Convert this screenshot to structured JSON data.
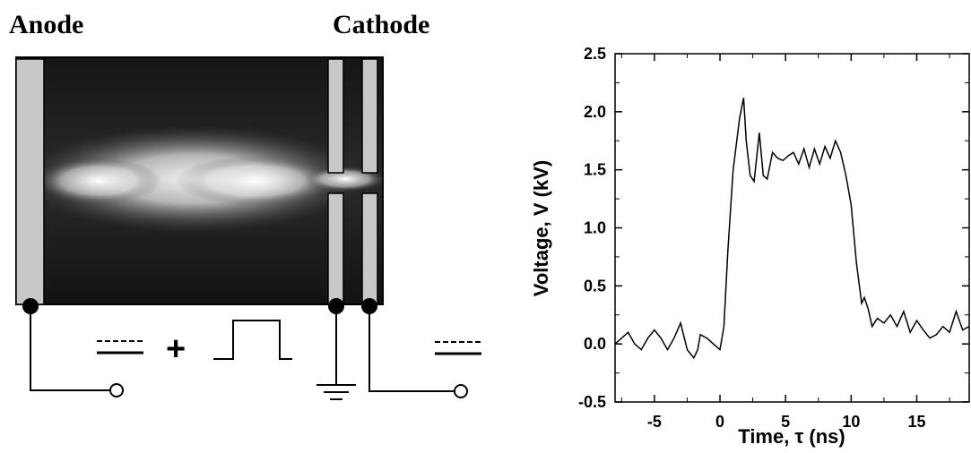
{
  "diagram": {
    "anode_label": "Anode",
    "cathode_label": "Cathode",
    "plus_sign": "+"
  },
  "chart_data": {
    "type": "line",
    "xlabel": "Time, τ (ns)",
    "ylabel": "Voltage, V (kV)",
    "xlim": [
      -8,
      19
    ],
    "ylim": [
      -0.5,
      2.5
    ],
    "x_ticks": [
      -5,
      0,
      5,
      10,
      15
    ],
    "y_ticks": [
      -0.5,
      0.0,
      0.5,
      1.0,
      1.5,
      2.0,
      2.5
    ],
    "x_tick_labels": [
      "-5",
      "0",
      "5",
      "10",
      "15"
    ],
    "y_tick_labels": [
      "-0.5",
      "0.0",
      "0.5",
      "1.0",
      "1.5",
      "2.0",
      "2.5"
    ],
    "grid": false,
    "series": [
      {
        "x": [
          -8,
          -7.5,
          -7,
          -6.5,
          -6,
          -5.5,
          -5,
          -4.5,
          -4,
          -3.5,
          -3,
          -2.5,
          -2,
          -1.7,
          -1.5,
          -1,
          -0.5,
          0,
          0.3,
          0.6,
          1.0,
          1.5,
          1.8,
          2.0,
          2.3,
          2.6,
          3.0,
          3.3,
          3.6,
          4.0,
          4.4,
          4.8,
          5.2,
          5.6,
          6.0,
          6.4,
          6.8,
          7.2,
          7.6,
          8.0,
          8.4,
          8.8,
          9.2,
          9.6,
          10.0,
          10.4,
          10.8,
          11.0,
          11.3,
          11.6,
          12.0,
          12.5,
          13.0,
          13.5,
          14.0,
          14.5,
          15.0,
          15.5,
          16.0,
          16.5,
          17.0,
          17.5,
          18.0,
          18.5,
          19.0
        ],
        "y": [
          0.0,
          0.05,
          0.1,
          0.0,
          -0.05,
          0.05,
          0.12,
          0.05,
          -0.05,
          0.05,
          0.18,
          -0.05,
          -0.12,
          -0.05,
          0.08,
          0.05,
          0.0,
          -0.05,
          0.15,
          0.8,
          1.5,
          1.95,
          2.12,
          1.75,
          1.45,
          1.4,
          1.82,
          1.45,
          1.42,
          1.65,
          1.6,
          1.58,
          1.62,
          1.65,
          1.55,
          1.68,
          1.52,
          1.68,
          1.55,
          1.7,
          1.6,
          1.75,
          1.65,
          1.45,
          1.2,
          0.7,
          0.35,
          0.4,
          0.3,
          0.15,
          0.22,
          0.18,
          0.25,
          0.15,
          0.28,
          0.1,
          0.2,
          0.12,
          0.05,
          0.08,
          0.15,
          0.1,
          0.28,
          0.12,
          0.15
        ]
      }
    ]
  }
}
